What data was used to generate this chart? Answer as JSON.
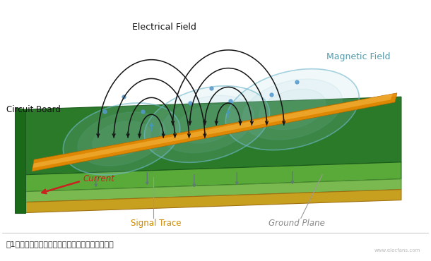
{
  "bg_color": "#ffffff",
  "board_top_color": "#2a7a2a",
  "board_front_color": "#5aaa3a",
  "board_layer2_color": "#7ab850",
  "board_bottom_color": "#c8a020",
  "board_left_color": "#1a6a1a",
  "trace_color": "#e88800",
  "trace_highlight": "#f5b840",
  "arc_color": "#1a1a1a",
  "mag_ellipse_color": "#70b8cc",
  "mag_fill_color": "#a0d0dc",
  "arrow_color": "#607878",
  "current_arrow_color": "#cc2020",
  "blue_dot_color": "#5599cc",
  "caption": "图1：信号中不断变化的电压和电流会产生电磁场。",
  "label_electrical": "Electrical Field",
  "label_magnetic": "Magnetic Field",
  "label_circuit": "Circuit Board",
  "label_signal": "Signal Trace",
  "label_ground": "Ground Plane",
  "label_current": "Current"
}
